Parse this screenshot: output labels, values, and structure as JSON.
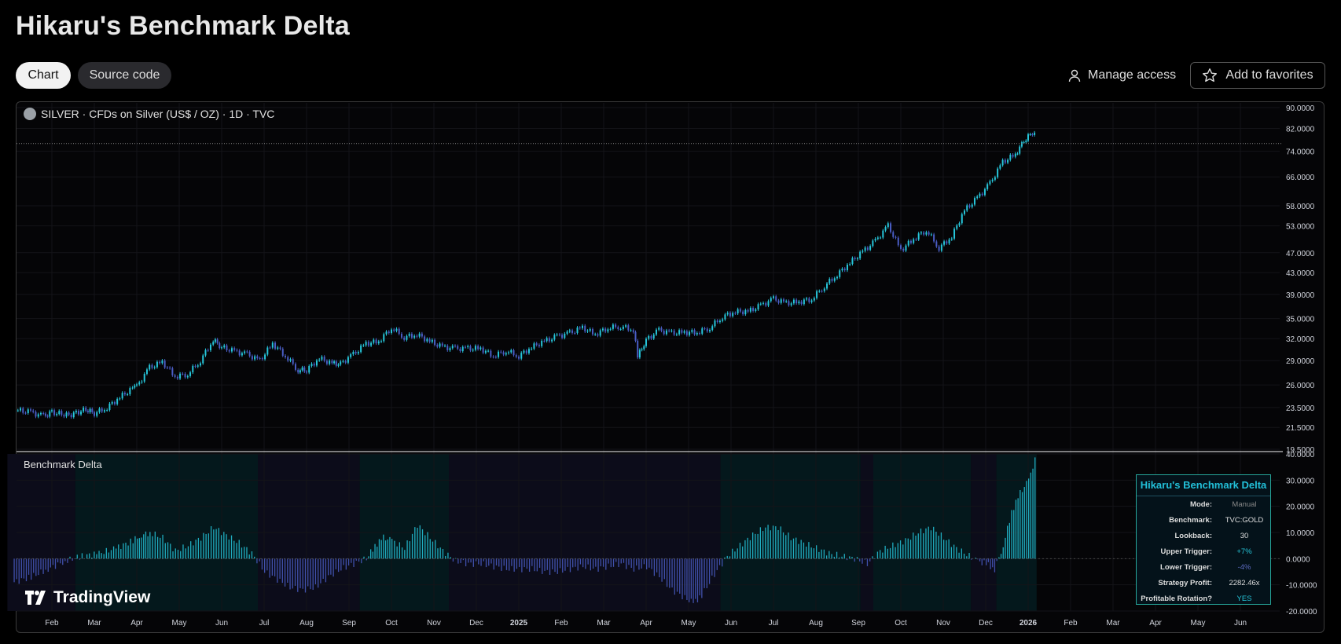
{
  "page": {
    "title": "Hikaru's Benchmark Delta",
    "tabs": [
      {
        "label": "Chart",
        "active": true
      },
      {
        "label": "Source code",
        "active": false
      }
    ],
    "manage_access_label": "Manage access",
    "add_favorites_label": "Add to favorites"
  },
  "chart": {
    "symbol_title": "SILVER · CFDs on Silver (US$ / OZ) · 1D · TVC",
    "pane_title": "Benchmark Delta",
    "logo_text": "TradingView",
    "colors": {
      "up": "#26c6da",
      "down": "#4a5dc5",
      "bg": "#050507"
    }
  },
  "stats_table": {
    "title": "Hikaru's Benchmark Delta",
    "rows": [
      {
        "key": "Mode:",
        "value": "Manual",
        "color": "#888888"
      },
      {
        "key": "Benchmark:",
        "value": "TVC:GOLD",
        "color": "#dddddd"
      },
      {
        "key": "Lookback:",
        "value": "30",
        "color": "#dddddd"
      },
      {
        "key": "Upper Trigger:",
        "value": "+7%",
        "color": "#26c6da"
      },
      {
        "key": "Lower Trigger:",
        "value": "-4%",
        "color": "#5c6bc0"
      },
      {
        "key": "Strategy Profit:",
        "value": "2282.46x",
        "color": "#dddddd"
      },
      {
        "key": "Profitable Rotation?",
        "value": "YES",
        "color": "#26c6da"
      }
    ]
  },
  "chart_data": [
    {
      "type": "line",
      "title": "SILVER · CFDs on Silver (US$ / OZ) · 1D · TVC",
      "y_scale": "log",
      "y_ticks": [
        90,
        82,
        74,
        66,
        58,
        53,
        47,
        43,
        39,
        35,
        32,
        29,
        26,
        23.5,
        21.5,
        19.5
      ],
      "y_tick_labels": [
        "90.0000",
        "82.0000",
        "74.0000",
        "66.0000",
        "58.0000",
        "53.0000",
        "47.0000",
        "43.0000",
        "39.0000",
        "35.0000",
        "32.0000",
        "29.0000",
        "26.0000",
        "23.5000",
        "21.5000",
        "19.5000"
      ],
      "ylim": [
        19.5,
        90
      ],
      "x_labels": [
        "Feb",
        "Mar",
        "Apr",
        "May",
        "Jun",
        "Jul",
        "Aug",
        "Sep",
        "Oct",
        "Nov",
        "Dec",
        "2025",
        "Feb",
        "Mar",
        "Apr",
        "May",
        "Jun",
        "Jul",
        "Aug",
        "Sep",
        "Oct",
        "Nov",
        "Dec",
        "2026",
        "Feb",
        "Mar",
        "Apr",
        "May",
        "Jun"
      ],
      "x_months": [
        1,
        2,
        3,
        4,
        5,
        6,
        7,
        8,
        9,
        10,
        11,
        12,
        13,
        14,
        15,
        16,
        17,
        18,
        19,
        20,
        21,
        22,
        23,
        24,
        25,
        26,
        27,
        28,
        29
      ],
      "series": [
        {
          "x": [
            0.2,
            0.5,
            0.8,
            1.0,
            1.4,
            1.8,
            2.0,
            2.3,
            2.6,
            2.9,
            3.0,
            3.3,
            3.6,
            3.9,
            4.2,
            4.5,
            4.8,
            5.0,
            5.3,
            5.6,
            5.9,
            6.2,
            6.5,
            6.8,
            7.0,
            7.3,
            7.6,
            7.8,
            8.1,
            8.4,
            8.7,
            9.0,
            9.3,
            9.6,
            9.9,
            10.2,
            10.5,
            10.8,
            11.1,
            11.4,
            11.7,
            12.0,
            12.3,
            12.6,
            12.9,
            13.2,
            13.5,
            13.8,
            14.1,
            14.4,
            14.7,
            14.8,
            15.0,
            15.3,
            15.6,
            15.9,
            16.2,
            16.5,
            16.8,
            17.1,
            17.4,
            17.7,
            18.0,
            18.3,
            18.6,
            18.9,
            19.2,
            19.5,
            19.8,
            20.1,
            20.4,
            20.7,
            21.0,
            21.3,
            21.6,
            21.9,
            22.2,
            22.5,
            22.8,
            23.1,
            23.4,
            23.7,
            23.9,
            24.1,
            24.2
          ],
          "y": [
            23.2,
            23.0,
            22.6,
            23.0,
            22.7,
            23.3,
            22.9,
            23.5,
            24.6,
            25.6,
            25.8,
            28.1,
            28.8,
            27.0,
            27.3,
            29.0,
            31.8,
            30.8,
            30.2,
            29.8,
            29.0,
            31.3,
            29.6,
            27.8,
            27.8,
            29.3,
            28.6,
            28.6,
            29.8,
            31.3,
            31.6,
            33.6,
            32.2,
            32.6,
            31.6,
            30.8,
            30.6,
            30.6,
            30.6,
            29.6,
            30.3,
            29.6,
            30.8,
            31.6,
            32.3,
            32.8,
            33.6,
            32.6,
            33.6,
            33.8,
            33.3,
            29.5,
            31.8,
            33.2,
            32.8,
            32.9,
            32.9,
            33.6,
            35.3,
            36.1,
            36.1,
            37.1,
            38.2,
            37.5,
            37.7,
            38.2,
            40.5,
            42.6,
            44.9,
            47.2,
            49.5,
            53.0,
            47.5,
            50.0,
            52.0,
            48.0,
            50.5,
            56.8,
            60.0,
            64.0,
            70.5,
            73.0,
            77.5,
            80.5,
            80.5
          ]
        }
      ]
    },
    {
      "type": "bar",
      "title": "Benchmark Delta",
      "y_ticks": [
        40,
        30,
        20,
        10,
        0,
        -10,
        -20
      ],
      "y_tick_labels": [
        "40.0000",
        "30.0000",
        "20.0000",
        "10.0000",
        "0.0000",
        "-10.0000",
        "-20.0000"
      ],
      "ylim": [
        -20,
        40
      ],
      "series": [
        {
          "x": [
            0.1,
            0.5,
            0.9,
            1.3,
            1.7,
            2.1,
            2.5,
            2.9,
            3.1,
            3.3,
            3.6,
            3.9,
            4.2,
            4.5,
            4.8,
            5.1,
            5.4,
            5.7,
            6.0,
            6.3,
            6.6,
            6.9,
            7.2,
            7.5,
            7.8,
            8.1,
            8.4,
            8.6,
            8.8,
            9.0,
            9.3,
            9.6,
            9.9,
            10.2,
            10.5,
            10.8,
            11.1,
            11.4,
            11.7,
            12.0,
            12.3,
            12.6,
            12.9,
            13.2,
            13.5,
            13.8,
            14.1,
            14.4,
            14.7,
            15.0,
            15.3,
            15.6,
            15.9,
            16.1,
            16.3,
            16.6,
            16.9,
            17.2,
            17.5,
            17.8,
            18.1,
            18.4,
            18.7,
            19.0,
            19.3,
            19.6,
            19.9,
            20.2,
            20.5,
            20.8,
            21.1,
            21.4,
            21.7,
            22.0,
            22.3,
            22.6,
            22.8,
            23.0,
            23.2,
            23.4,
            23.6,
            23.8,
            24.0,
            24.1,
            24.2
          ],
          "y": [
            -9,
            -7,
            -4,
            -1,
            1,
            2,
            4,
            7,
            9,
            10,
            8,
            3,
            5,
            8,
            12,
            9,
            6,
            2,
            -5,
            -8,
            -11,
            -12,
            -11,
            -7,
            -4,
            -2,
            0,
            5,
            8,
            7,
            4,
            13,
            8,
            3,
            -1,
            -2,
            -2,
            -3,
            -4,
            -4,
            -4,
            -5,
            -5,
            -4,
            -3,
            -4,
            -3,
            -2,
            -4,
            -3,
            -7,
            -12,
            -15,
            -17,
            -14,
            -6,
            1,
            5,
            9,
            12,
            12,
            8,
            6,
            4,
            2,
            1,
            0,
            -2,
            3,
            5,
            7,
            10,
            12,
            8,
            4,
            1,
            -1,
            -2,
            -4,
            5,
            18,
            25,
            30,
            35,
            40
          ]
        }
      ]
    }
  ]
}
